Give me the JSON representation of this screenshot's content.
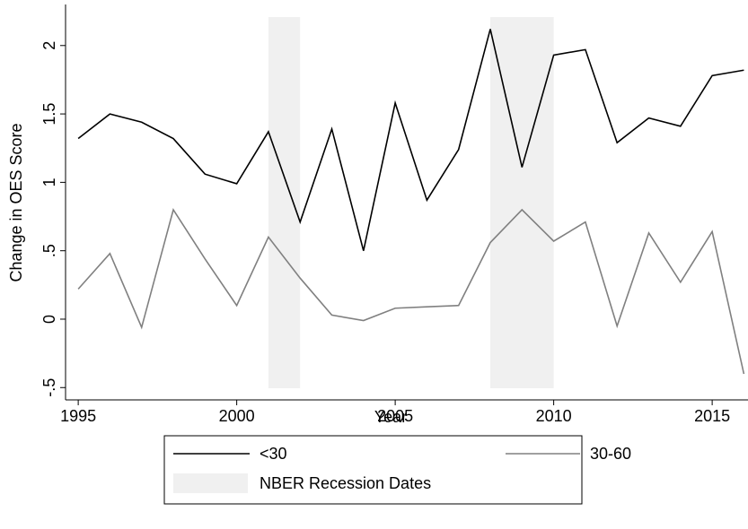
{
  "chart_data": {
    "type": "line",
    "x_label": "Year",
    "y_label": "Change in OES Score",
    "x": [
      1995,
      1996,
      1997,
      1998,
      1999,
      2000,
      2001,
      2002,
      2003,
      2004,
      2005,
      2006,
      2007,
      2008,
      2009,
      2010,
      2011,
      2012,
      2013,
      2014,
      2015,
      2016
    ],
    "series": [
      {
        "name": "<30",
        "color": "#000000",
        "values": [
          1.32,
          1.5,
          1.44,
          1.32,
          1.06,
          0.99,
          1.37,
          0.71,
          1.39,
          0.5,
          1.58,
          0.87,
          1.24,
          2.12,
          1.11,
          1.93,
          1.97,
          1.29,
          1.47,
          1.41,
          1.78,
          1.82
        ]
      },
      {
        "name": "30-60",
        "color": "#808080",
        "values": [
          0.22,
          0.48,
          -0.06,
          0.8,
          0.44,
          0.1,
          0.6,
          0.3,
          0.03,
          -0.01,
          0.08,
          0.09,
          0.1,
          0.56,
          0.8,
          0.57,
          0.71,
          -0.05,
          0.63,
          0.27,
          0.64,
          -0.4
        ]
      }
    ],
    "shaded_periods": {
      "name": "NBER Recession Dates",
      "color": "#f0f0f0",
      "ranges": [
        [
          2001,
          2002
        ],
        [
          2008,
          2010
        ]
      ]
    },
    "xlim": [
      1994.6,
      2016.13
    ],
    "xticks": [
      1995,
      2000,
      2005,
      2010,
      2015
    ],
    "ylim": [
      -0.59,
      2.3
    ],
    "yticks": [
      {
        "value": -0.5,
        "label": "-.5"
      },
      0,
      {
        "value": 0.5,
        "label": ".5"
      },
      1,
      1.5,
      2
    ],
    "grid": false,
    "legend_position": "bottom"
  }
}
